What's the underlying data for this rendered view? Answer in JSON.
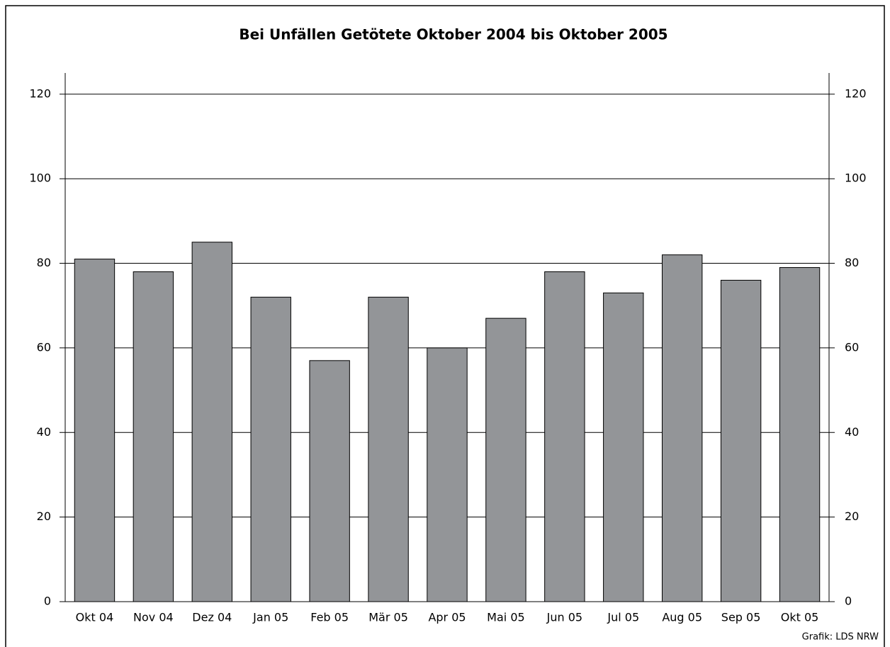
{
  "chart_data": {
    "type": "bar",
    "title": "Bei Unfällen Getötete Oktober 2004 bis Oktober 2005",
    "categories": [
      "Okt 04",
      "Nov 04",
      "Dez 04",
      "Jan 05",
      "Feb 05",
      "Mär 05",
      "Apr 05",
      "Mai 05",
      "Jun 05",
      "Jul 05",
      "Aug 05",
      "Sep 05",
      "Okt 05"
    ],
    "values": [
      81,
      78,
      85,
      72,
      57,
      72,
      60,
      67,
      78,
      73,
      82,
      76,
      79
    ],
    "color": "#939598",
    "ylim": [
      0,
      125
    ],
    "yticks": [
      0,
      20,
      40,
      60,
      80,
      100,
      120
    ],
    "grid": true,
    "source": "Grafik: LDS NRW"
  }
}
